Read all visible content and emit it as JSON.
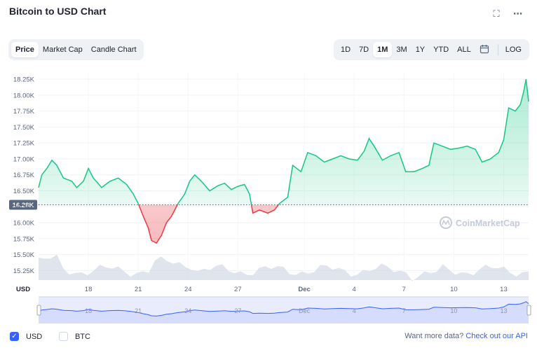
{
  "header": {
    "title": "Bitcoin to USD Chart"
  },
  "view_tabs": [
    {
      "label": "Price",
      "active": true
    },
    {
      "label": "Market Cap",
      "active": false
    },
    {
      "label": "Candle Chart",
      "active": false
    }
  ],
  "range_tabs": [
    {
      "label": "1D",
      "active": false
    },
    {
      "label": "7D",
      "active": false
    },
    {
      "label": "1M",
      "active": true
    },
    {
      "label": "3M",
      "active": false
    },
    {
      "label": "1Y",
      "active": false
    },
    {
      "label": "YTD",
      "active": false
    },
    {
      "label": "ALL",
      "active": false
    }
  ],
  "log_label": "LOG",
  "watermark": "CoinMarketCap",
  "footer": {
    "usd_label": "USD",
    "btc_label": "BTC",
    "api_text": "Want more data?",
    "api_link": "Check out our API"
  },
  "colors": {
    "up": "#16c784",
    "down": "#ea3943",
    "accent": "#3861fb"
  },
  "chart_data": {
    "type": "area",
    "currency_label": "USD",
    "reference_value": 16280,
    "reference_label": "16.28K",
    "ylim": [
      15100,
      18350
    ],
    "y_ticks": [
      "18.25K",
      "18.00K",
      "17.75K",
      "17.50K",
      "17.25K",
      "17.00K",
      "16.75K",
      "16.50K",
      "16.25K",
      "16.00K",
      "15.75K",
      "15.50K",
      "15.25K"
    ],
    "y_tick_values": [
      18250,
      18000,
      17750,
      17500,
      17250,
      17000,
      16750,
      16500,
      16250,
      16000,
      15750,
      15500,
      15250
    ],
    "x_ticks": [
      "18",
      "21",
      "24",
      "27",
      "Dec",
      "4",
      "7",
      "10",
      "13"
    ],
    "x_tick_days": [
      18,
      21,
      24,
      27,
      31,
      34,
      37,
      40,
      43
    ],
    "xlim": [
      15,
      44.5
    ],
    "series": [
      {
        "values": [
          [
            15.0,
            16550
          ],
          [
            15.2,
            16750
          ],
          [
            15.5,
            16850
          ],
          [
            15.8,
            16980
          ],
          [
            16.1,
            16900
          ],
          [
            16.5,
            16700
          ],
          [
            17.0,
            16650
          ],
          [
            17.3,
            16550
          ],
          [
            17.7,
            16650
          ],
          [
            18.0,
            16850
          ],
          [
            18.3,
            16700
          ],
          [
            18.8,
            16550
          ],
          [
            19.3,
            16650
          ],
          [
            19.8,
            16700
          ],
          [
            20.3,
            16600
          ],
          [
            20.7,
            16450
          ],
          [
            21.0,
            16300
          ],
          [
            21.3,
            16100
          ],
          [
            21.6,
            15920
          ],
          [
            21.8,
            15720
          ],
          [
            22.1,
            15680
          ],
          [
            22.4,
            15800
          ],
          [
            22.7,
            16000
          ],
          [
            23.0,
            16100
          ],
          [
            23.4,
            16300
          ],
          [
            23.8,
            16450
          ],
          [
            24.1,
            16650
          ],
          [
            24.4,
            16750
          ],
          [
            24.8,
            16650
          ],
          [
            25.3,
            16500
          ],
          [
            25.8,
            16580
          ],
          [
            26.2,
            16620
          ],
          [
            26.6,
            16520
          ],
          [
            27.0,
            16570
          ],
          [
            27.4,
            16600
          ],
          [
            27.7,
            16450
          ],
          [
            27.9,
            16150
          ],
          [
            28.3,
            16200
          ],
          [
            28.8,
            16150
          ],
          [
            29.2,
            16200
          ],
          [
            29.5,
            16300
          ],
          [
            30.0,
            16400
          ],
          [
            30.3,
            16900
          ],
          [
            30.8,
            16800
          ],
          [
            31.2,
            17100
          ],
          [
            31.7,
            17050
          ],
          [
            32.2,
            16950
          ],
          [
            32.7,
            17000
          ],
          [
            33.2,
            17050
          ],
          [
            33.7,
            17000
          ],
          [
            34.2,
            16980
          ],
          [
            34.6,
            17120
          ],
          [
            34.9,
            17320
          ],
          [
            35.2,
            17200
          ],
          [
            35.7,
            16980
          ],
          [
            36.2,
            17050
          ],
          [
            36.7,
            17100
          ],
          [
            37.1,
            16800
          ],
          [
            37.6,
            16800
          ],
          [
            38.1,
            16850
          ],
          [
            38.5,
            16900
          ],
          [
            38.8,
            17250
          ],
          [
            39.3,
            17200
          ],
          [
            39.8,
            17150
          ],
          [
            40.3,
            17170
          ],
          [
            40.8,
            17200
          ],
          [
            41.3,
            17150
          ],
          [
            41.7,
            16950
          ],
          [
            42.2,
            17000
          ],
          [
            42.7,
            17100
          ],
          [
            43.0,
            17300
          ],
          [
            43.3,
            17800
          ],
          [
            43.7,
            17750
          ],
          [
            44.0,
            17850
          ],
          [
            44.2,
            18050
          ],
          [
            44.35,
            18250
          ],
          [
            44.5,
            17900
          ]
        ]
      }
    ]
  }
}
